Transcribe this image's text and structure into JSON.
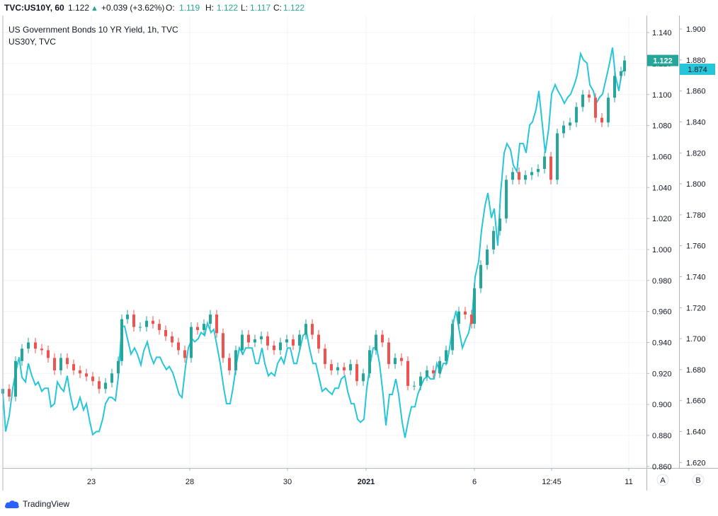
{
  "header": {
    "symbol": "TVC:US10Y, 60",
    "last": "1.122",
    "arrow": "▲",
    "change": "+0.039 (+3.62%)",
    "open_label": "O:",
    "open": "1.119",
    "high_label": "H:",
    "high": "1.122",
    "low_label": "L:",
    "low": "1.117",
    "close_label": "C:",
    "close": "1.122"
  },
  "legend": {
    "title": "US Government Bonds 10 YR Yield, 1h, TVC",
    "compare": "US30Y, TVC"
  },
  "footer": {
    "brand": "TradingView"
  },
  "axis_buttons": {
    "a": "A",
    "b": "B"
  },
  "colors": {
    "up": "#26a69a",
    "down": "#ef5350",
    "compare_line": "#26c6da",
    "grid": "#f0f3fa",
    "axis": "#b2b5be"
  },
  "chart_data": {
    "type": "line",
    "title": "US Government Bonds 10 YR Yield, 1h, TVC",
    "x_tick_labels": [
      "23",
      "28",
      "30",
      "2021",
      "6",
      "12:45",
      "11"
    ],
    "x_tick_positions": [
      129,
      268,
      406,
      517,
      670,
      779,
      888
    ],
    "left_axis": {
      "series": "US10Y",
      "ylim": [
        0.859,
        1.151
      ],
      "ticks": [
        "1.140",
        "1.120",
        "1.100",
        "1.080",
        "1.060",
        "1.040",
        "1.020",
        "1.000",
        "0.980",
        "0.960",
        "0.940",
        "0.920",
        "0.900",
        "0.880",
        "0.860"
      ],
      "last_value": "1.122"
    },
    "right_axis": {
      "series": "US30Y",
      "ylim": [
        1.6165,
        1.9087
      ],
      "ticks": [
        "1.900",
        "1.880",
        "1.860",
        "1.840",
        "1.820",
        "1.800",
        "1.780",
        "1.760",
        "1.740",
        "1.720",
        "1.700",
        "1.680",
        "1.660",
        "1.640",
        "1.620"
      ],
      "last_value": "1.874"
    },
    "series": [
      {
        "name": "US10Y",
        "kind": "candlestick",
        "values": [
          [
            4,
            0.91
          ],
          [
            13,
            0.905
          ],
          [
            22,
            0.928
          ],
          [
            31,
            0.936
          ],
          [
            40,
            0.94
          ],
          [
            50,
            0.936
          ],
          [
            59,
            0.935
          ],
          [
            68,
            0.93
          ],
          [
            77,
            0.922
          ],
          [
            86,
            0.93
          ],
          [
            95,
            0.926
          ],
          [
            104,
            0.922
          ],
          [
            113,
            0.92
          ],
          [
            122,
            0.918
          ],
          [
            131,
            0.915
          ],
          [
            140,
            0.91
          ],
          [
            149,
            0.914
          ],
          [
            158,
            0.92
          ],
          [
            167,
            0.928
          ],
          [
            172,
            0.955
          ],
          [
            180,
            0.958
          ],
          [
            189,
            0.95
          ],
          [
            198,
            0.95
          ],
          [
            207,
            0.954
          ],
          [
            216,
            0.952
          ],
          [
            225,
            0.948
          ],
          [
            234,
            0.944
          ],
          [
            243,
            0.94
          ],
          [
            252,
            0.935
          ],
          [
            261,
            0.93
          ],
          [
            270,
            0.95
          ],
          [
            279,
            0.948
          ],
          [
            288,
            0.952
          ],
          [
            297,
            0.958
          ],
          [
            306,
            0.946
          ],
          [
            315,
            0.93
          ],
          [
            324,
            0.922
          ],
          [
            333,
            0.935
          ],
          [
            342,
            0.945
          ],
          [
            351,
            0.94
          ],
          [
            360,
            0.942
          ],
          [
            369,
            0.944
          ],
          [
            378,
            0.938
          ],
          [
            387,
            0.935
          ],
          [
            396,
            0.94
          ],
          [
            405,
            0.942
          ],
          [
            414,
            0.938
          ],
          [
            423,
            0.945
          ],
          [
            432,
            0.952
          ],
          [
            441,
            0.945
          ],
          [
            450,
            0.936
          ],
          [
            459,
            0.926
          ],
          [
            468,
            0.922
          ],
          [
            477,
            0.924
          ],
          [
            486,
            0.922
          ],
          [
            495,
            0.926
          ],
          [
            504,
            0.915
          ],
          [
            513,
            0.92
          ],
          [
            522,
            0.935
          ],
          [
            531,
            0.945
          ],
          [
            540,
            0.94
          ],
          [
            549,
            0.926
          ],
          [
            558,
            0.93
          ],
          [
            567,
            0.928
          ],
          [
            576,
            0.912
          ],
          [
            585,
            0.912
          ],
          [
            594,
            0.918
          ],
          [
            603,
            0.922
          ],
          [
            612,
            0.92
          ],
          [
            621,
            0.928
          ],
          [
            630,
            0.935
          ],
          [
            639,
            0.952
          ],
          [
            648,
            0.96
          ],
          [
            657,
            0.958
          ],
          [
            666,
            0.952
          ],
          [
            670,
            0.975
          ],
          [
            679,
            0.99
          ],
          [
            688,
            1.0
          ],
          [
            697,
            1.012
          ],
          [
            706,
            1.02
          ],
          [
            715,
            1.045
          ],
          [
            724,
            1.05
          ],
          [
            733,
            1.045
          ],
          [
            742,
            1.048
          ],
          [
            751,
            1.05
          ],
          [
            760,
            1.052
          ],
          [
            769,
            1.06
          ],
          [
            778,
            1.045
          ],
          [
            787,
            1.075
          ],
          [
            796,
            1.08
          ],
          [
            805,
            1.082
          ],
          [
            814,
            1.092
          ],
          [
            823,
            1.1
          ],
          [
            832,
            1.098
          ],
          [
            841,
            1.085
          ],
          [
            850,
            1.082
          ],
          [
            859,
            1.098
          ],
          [
            868,
            1.112
          ],
          [
            877,
            1.115
          ],
          [
            882,
            1.122
          ]
        ]
      },
      {
        "name": "US30Y",
        "kind": "line",
        "values": [
          [
            4,
            1.665
          ],
          [
            8,
            1.64
          ],
          [
            13,
            1.65
          ],
          [
            18,
            1.668
          ],
          [
            22,
            1.678
          ],
          [
            27,
            1.688
          ],
          [
            31,
            1.675
          ],
          [
            36,
            1.672
          ],
          [
            40,
            1.684
          ],
          [
            45,
            1.676
          ],
          [
            50,
            1.67
          ],
          [
            54,
            1.672
          ],
          [
            59,
            1.666
          ],
          [
            63,
            1.668
          ],
          [
            68,
            1.668
          ],
          [
            72,
            1.656
          ],
          [
            77,
            1.658
          ],
          [
            81,
            1.672
          ],
          [
            86,
            1.668
          ],
          [
            90,
            1.666
          ],
          [
            95,
            1.676
          ],
          [
            99,
            1.664
          ],
          [
            104,
            1.654
          ],
          [
            109,
            1.656
          ],
          [
            113,
            1.662
          ],
          [
            118,
            1.654
          ],
          [
            122,
            1.658
          ],
          [
            127,
            1.646
          ],
          [
            131,
            1.638
          ],
          [
            136,
            1.64
          ],
          [
            140,
            1.64
          ],
          [
            145,
            1.648
          ],
          [
            149,
            1.658
          ],
          [
            154,
            1.662
          ],
          [
            158,
            1.662
          ],
          [
            163,
            1.66
          ],
          [
            167,
            1.675
          ],
          [
            172,
            1.708
          ],
          [
            176,
            1.708
          ],
          [
            181,
            1.698
          ],
          [
            185,
            1.69
          ],
          [
            190,
            1.694
          ],
          [
            194,
            1.69
          ],
          [
            199,
            1.683
          ],
          [
            203,
            1.692
          ],
          [
            208,
            1.698
          ],
          [
            212,
            1.69
          ],
          [
            217,
            1.684
          ],
          [
            221,
            1.688
          ],
          [
            226,
            1.688
          ],
          [
            230,
            1.684
          ],
          [
            235,
            1.68
          ],
          [
            239,
            1.682
          ],
          [
            244,
            1.678
          ],
          [
            248,
            1.672
          ],
          [
            253,
            1.664
          ],
          [
            257,
            1.662
          ],
          [
            262,
            1.682
          ],
          [
            266,
            1.694
          ],
          [
            271,
            1.7
          ],
          [
            275,
            1.698
          ],
          [
            280,
            1.7
          ],
          [
            284,
            1.704
          ],
          [
            289,
            1.702
          ],
          [
            293,
            1.71
          ],
          [
            298,
            1.704
          ],
          [
            302,
            1.706
          ],
          [
            307,
            1.694
          ],
          [
            311,
            1.684
          ],
          [
            316,
            1.668
          ],
          [
            320,
            1.658
          ],
          [
            325,
            1.658
          ],
          [
            329,
            1.668
          ],
          [
            334,
            1.684
          ],
          [
            338,
            1.694
          ],
          [
            343,
            1.69
          ],
          [
            347,
            1.694
          ],
          [
            352,
            1.694
          ],
          [
            356,
            1.694
          ],
          [
            361,
            1.684
          ],
          [
            365,
            1.684
          ],
          [
            370,
            1.694
          ],
          [
            374,
            1.684
          ],
          [
            379,
            1.676
          ],
          [
            383,
            1.678
          ],
          [
            388,
            1.676
          ],
          [
            392,
            1.684
          ],
          [
            397,
            1.688
          ],
          [
            401,
            1.684
          ],
          [
            406,
            1.694
          ],
          [
            410,
            1.694
          ],
          [
            415,
            1.684
          ],
          [
            419,
            1.684
          ],
          [
            424,
            1.694
          ],
          [
            428,
            1.702
          ],
          [
            433,
            1.704
          ],
          [
            437,
            1.694
          ],
          [
            442,
            1.684
          ],
          [
            446,
            1.684
          ],
          [
            451,
            1.674
          ],
          [
            455,
            1.666
          ],
          [
            460,
            1.668
          ],
          [
            464,
            1.666
          ],
          [
            469,
            1.664
          ],
          [
            473,
            1.668
          ],
          [
            478,
            1.668
          ],
          [
            482,
            1.674
          ],
          [
            487,
            1.676
          ],
          [
            491,
            1.666
          ],
          [
            496,
            1.658
          ],
          [
            500,
            1.658
          ],
          [
            505,
            1.648
          ],
          [
            509,
            1.646
          ],
          [
            514,
            1.648
          ],
          [
            518,
            1.668
          ],
          [
            523,
            1.684
          ],
          [
            527,
            1.694
          ],
          [
            532,
            1.694
          ],
          [
            536,
            1.684
          ],
          [
            541,
            1.664
          ],
          [
            545,
            1.644
          ],
          [
            550,
            1.664
          ],
          [
            554,
            1.664
          ],
          [
            559,
            1.674
          ],
          [
            563,
            1.664
          ],
          [
            568,
            1.646
          ],
          [
            572,
            1.636
          ],
          [
            577,
            1.648
          ],
          [
            581,
            1.656
          ],
          [
            586,
            1.656
          ],
          [
            590,
            1.664
          ],
          [
            595,
            1.67
          ],
          [
            599,
            1.674
          ],
          [
            604,
            1.676
          ],
          [
            608,
            1.674
          ],
          [
            613,
            1.674
          ],
          [
            617,
            1.684
          ],
          [
            622,
            1.678
          ],
          [
            626,
            1.684
          ],
          [
            631,
            1.684
          ],
          [
            635,
            1.694
          ],
          [
            640,
            1.71
          ],
          [
            644,
            1.718
          ],
          [
            649,
            1.704
          ],
          [
            653,
            1.694
          ],
          [
            658,
            1.7
          ],
          [
            662,
            1.704
          ],
          [
            667,
            1.716
          ],
          [
            671,
            1.74
          ],
          [
            676,
            1.75
          ],
          [
            680,
            1.77
          ],
          [
            685,
            1.786
          ],
          [
            689,
            1.794
          ],
          [
            694,
            1.778
          ],
          [
            698,
            1.784
          ],
          [
            703,
            1.76
          ],
          [
            707,
            1.794
          ],
          [
            712,
            1.82
          ],
          [
            716,
            1.826
          ],
          [
            721,
            1.822
          ],
          [
            725,
            1.812
          ],
          [
            730,
            1.808
          ],
          [
            734,
            1.826
          ],
          [
            739,
            1.826
          ],
          [
            743,
            1.82
          ],
          [
            748,
            1.838
          ],
          [
            752,
            1.84
          ],
          [
            757,
            1.848
          ],
          [
            761,
            1.86
          ],
          [
            766,
            1.838
          ],
          [
            770,
            1.82
          ],
          [
            775,
            1.836
          ],
          [
            779,
            1.858
          ],
          [
            784,
            1.864
          ],
          [
            788,
            1.86
          ],
          [
            793,
            1.856
          ],
          [
            797,
            1.852
          ],
          [
            802,
            1.856
          ],
          [
            806,
            1.858
          ],
          [
            811,
            1.864
          ],
          [
            815,
            1.87
          ],
          [
            820,
            1.884
          ],
          [
            824,
            1.88
          ],
          [
            829,
            1.878
          ],
          [
            833,
            1.864
          ],
          [
            838,
            1.86
          ],
          [
            842,
            1.852
          ],
          [
            847,
            1.856
          ],
          [
            851,
            1.858
          ],
          [
            856,
            1.868
          ],
          [
            860,
            1.876
          ],
          [
            865,
            1.888
          ],
          [
            869,
            1.87
          ],
          [
            874,
            1.86
          ],
          [
            878,
            1.872
          ],
          [
            882,
            1.874
          ]
        ]
      }
    ],
    "grid": true,
    "legend": "top-left"
  }
}
